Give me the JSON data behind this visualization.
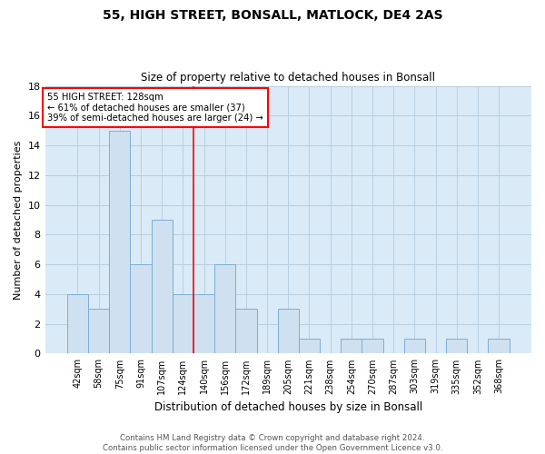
{
  "title_line1": "55, HIGH STREET, BONSALL, MATLOCK, DE4 2AS",
  "title_line2": "Size of property relative to detached houses in Bonsall",
  "xlabel": "Distribution of detached houses by size in Bonsall",
  "ylabel": "Number of detached properties",
  "footer_line1": "Contains HM Land Registry data © Crown copyright and database right 2024.",
  "footer_line2": "Contains public sector information licensed under the Open Government Licence v3.0.",
  "categories": [
    "42sqm",
    "58sqm",
    "75sqm",
    "91sqm",
    "107sqm",
    "124sqm",
    "140sqm",
    "156sqm",
    "172sqm",
    "189sqm",
    "205sqm",
    "221sqm",
    "238sqm",
    "254sqm",
    "270sqm",
    "287sqm",
    "303sqm",
    "319sqm",
    "335sqm",
    "352sqm",
    "368sqm"
  ],
  "values": [
    4,
    3,
    15,
    6,
    9,
    4,
    4,
    6,
    3,
    0,
    3,
    1,
    0,
    1,
    1,
    0,
    1,
    0,
    1,
    0,
    1
  ],
  "bar_color": "#cfe0f0",
  "bar_edge_color": "#7bafd4",
  "property_line_x": 5.5,
  "annotation_text_line1": "55 HIGH STREET: 128sqm",
  "annotation_text_line2": "← 61% of detached houses are smaller (37)",
  "annotation_text_line3": "39% of semi-detached houses are larger (24) →",
  "annotation_box_color": "white",
  "annotation_box_edge_color": "red",
  "vline_color": "red",
  "ylim": [
    0,
    18
  ],
  "yticks": [
    0,
    2,
    4,
    6,
    8,
    10,
    12,
    14,
    16,
    18
  ],
  "grid_color": "#b8cfe0",
  "bg_color": "#daeaf7"
}
